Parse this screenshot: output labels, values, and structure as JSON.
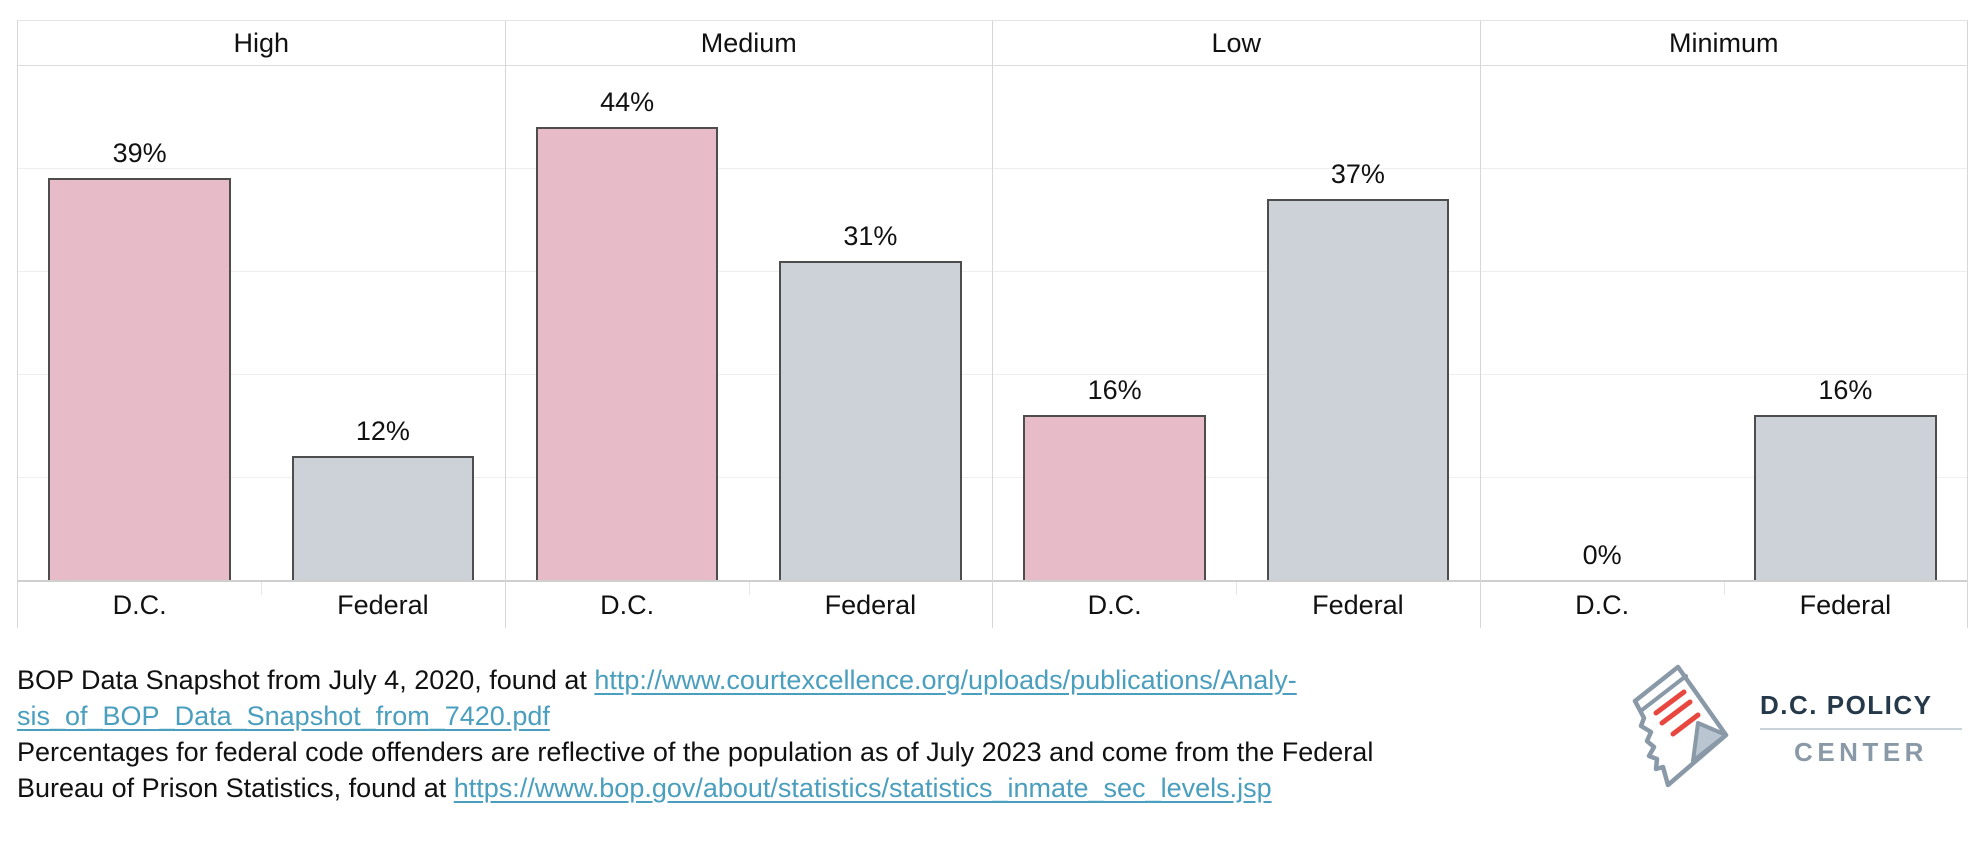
{
  "chart_data": {
    "type": "bar",
    "title": "",
    "unit": "%",
    "ylim": [
      0,
      50
    ],
    "gridline_step": 10,
    "grid": true,
    "legend": "none",
    "categories": [
      "D.C.",
      "Federal"
    ],
    "panels": [
      {
        "facet": "High",
        "bars": [
          {
            "category": "D.C.",
            "value": 39,
            "label": "39%"
          },
          {
            "category": "Federal",
            "value": 12,
            "label": "12%"
          }
        ]
      },
      {
        "facet": "Medium",
        "bars": [
          {
            "category": "D.C.",
            "value": 44,
            "label": "44%"
          },
          {
            "category": "Federal",
            "value": 31,
            "label": "31%"
          }
        ]
      },
      {
        "facet": "Low",
        "bars": [
          {
            "category": "D.C.",
            "value": 16,
            "label": "16%"
          },
          {
            "category": "Federal",
            "value": 37,
            "label": "37%"
          }
        ]
      },
      {
        "facet": "Minimum",
        "bars": [
          {
            "category": "D.C.",
            "value": 0,
            "label": "0%"
          },
          {
            "category": "Federal",
            "value": 16,
            "label": "16%"
          }
        ]
      }
    ]
  },
  "caption": {
    "line1_text": "BOP Data Snapshot from July 4, 2020, found at ",
    "line1_link": "http://www.courtexcellence.org/uploads/publications/Analy-",
    "line2_link": "sis_of_BOP_Data_Snapshot_from_7420.pdf",
    "line3_text": "Percentages for federal code offenders are reflective of the population as of July 2023 and come from the Federal",
    "line4_text": "Bureau of Prison Statistics, found at ",
    "line4_link": "https://www.bop.gov/about/statistics/statistics_inmate_sec_levels.jsp"
  },
  "logo": {
    "line1": "D.C. POLICY",
    "line2": "CENTER"
  },
  "colors": {
    "dc_bar": "#E7BBC7",
    "federal_bar": "#CDD2D9",
    "bar_border": "#4D4D4D",
    "grid_line": "#EFEFEF",
    "panel_line": "#D6D6D6",
    "axis_line": "#CFCFCF",
    "text": "#111111",
    "link": "#4A9EBE",
    "logo_navy": "#25394B",
    "logo_gray": "#8A99A8",
    "logo_red": "#E8473F",
    "logo_curl": "#B9C5D1",
    "logo_divider": "#C9D3DC"
  }
}
